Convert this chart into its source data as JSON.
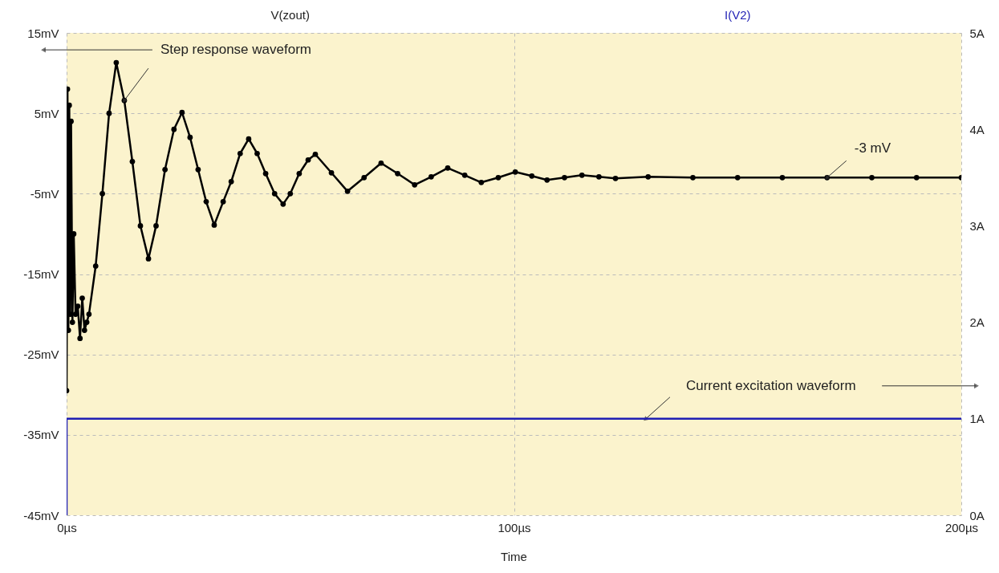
{
  "chart_data": {
    "type": "line",
    "xlabel": "Time",
    "xlim": [
      0,
      200
    ],
    "xticks": [
      {
        "value": 0,
        "label": "0µs"
      },
      {
        "value": 100,
        "label": "100µs"
      },
      {
        "value": 200,
        "label": "200µs"
      }
    ],
    "ylim": [
      -45,
      15
    ],
    "yticks": [
      {
        "value": -45,
        "label": "-45mV"
      },
      {
        "value": -35,
        "label": "-35mV"
      },
      {
        "value": -25,
        "label": "-25mV"
      },
      {
        "value": -15,
        "label": "-15mV"
      },
      {
        "value": -5,
        "label": "-5mV"
      },
      {
        "value": 5,
        "label": "5mV"
      },
      {
        "value": 15,
        "label": "15mV"
      }
    ],
    "y2lim": [
      0,
      5
    ],
    "y2ticks": [
      {
        "value": 0,
        "label": "0A"
      },
      {
        "value": 1,
        "label": "1A"
      },
      {
        "value": 2,
        "label": "2A"
      },
      {
        "value": 3,
        "label": "3A"
      },
      {
        "value": 4,
        "label": "4A"
      },
      {
        "value": 5,
        "label": "5A"
      }
    ],
    "grid": true,
    "legend": "top",
    "series": [
      {
        "name": "V(zout)",
        "color": "#000000",
        "marker": "circle",
        "x": [
          0,
          0.2,
          0.4,
          0.6,
          0.8,
          1.0,
          1.3,
          1.6,
          2.0,
          2.5,
          3.0,
          3.5,
          4.0,
          4.5,
          5.0,
          6.5,
          8,
          9.5,
          11.1,
          12.9,
          14.7,
          16.5,
          18.3,
          20,
          22,
          24,
          25.8,
          27.6,
          29.4,
          31.2,
          33,
          35,
          36.8,
          38.8,
          40.7,
          42.6,
          44.5,
          46.5,
          48.4,
          50,
          52,
          54,
          55.6,
          59.2,
          62.8,
          66.5,
          70.3,
          74,
          77.8,
          81.5,
          85.2,
          89,
          92.7,
          96.5,
          100.3,
          104,
          107.4,
          111.3,
          115.2,
          119,
          122.7,
          130,
          140,
          150,
          160,
          170,
          180,
          190,
          200
        ],
        "values": [
          -29.5,
          8,
          -22,
          6,
          -20,
          4,
          -21,
          -10,
          -20,
          -19,
          -23,
          -18,
          -22,
          -21,
          -20,
          -14,
          -5,
          5,
          11.3,
          6.6,
          -1,
          -9,
          -13.1,
          -9,
          -2,
          3,
          5.1,
          2,
          -2,
          -6,
          -8.9,
          -6,
          -3.5,
          0,
          1.8,
          0,
          -2.5,
          -5,
          -6.3,
          -5,
          -2.5,
          -0.8,
          -0.1,
          -2.4,
          -4.7,
          -3,
          -1.2,
          -2.5,
          -3.9,
          -2.9,
          -1.8,
          -2.7,
          -3.6,
          -3,
          -2.3,
          -2.8,
          -3.3,
          -3,
          -2.7,
          -2.9,
          -3.1,
          -2.9,
          -3,
          -3,
          -3,
          -3,
          -3,
          -3,
          -3
        ]
      },
      {
        "name": "I(V2)",
        "color": "#1f1fb4",
        "axis": "y2",
        "x": [
          0,
          0,
          200
        ],
        "values": [
          0,
          1,
          1
        ]
      }
    ],
    "annotations": [
      {
        "text": "Step response waveform",
        "x": 12.9,
        "y": 6.6
      },
      {
        "text": "-3 mV",
        "x": 170,
        "y": -3
      },
      {
        "text": "Current excitation waveform",
        "x": 129.5,
        "y": -33
      }
    ]
  }
}
